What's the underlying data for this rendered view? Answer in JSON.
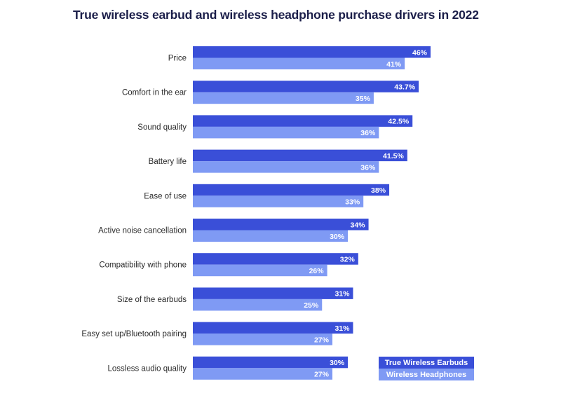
{
  "colors": {
    "earbuds": "#3a4fd8",
    "headphones": "#7f9af4",
    "title": "#1c1f4a",
    "label": "#2a2a2a"
  },
  "chart_data": {
    "type": "bar",
    "orientation": "horizontal",
    "title": "True wireless earbud and wireless headphone purchase drivers in 2022",
    "xlabel": "",
    "ylabel": "",
    "xlim": [
      0,
      48
    ],
    "grid": false,
    "legend_position": "bottom-right",
    "categories": [
      "Price",
      "Comfort in the ear",
      "Sound quality",
      "Battery life",
      "Ease of use",
      "Active noise cancellation",
      "Compatibility with phone",
      "Size of the earbuds",
      "Easy set up/Bluetooth pairing",
      "Lossless audio quality"
    ],
    "series": [
      {
        "name": "True Wireless Earbuds",
        "values": [
          46,
          43.7,
          42.5,
          41.5,
          38,
          34,
          32,
          31,
          31,
          30
        ],
        "labels": [
          "46%",
          "43.7%",
          "42.5%",
          "41.5%",
          "38%",
          "34%",
          "32%",
          "31%",
          "31%",
          "30%"
        ]
      },
      {
        "name": "Wireless Headphones",
        "values": [
          41,
          35,
          36,
          36,
          33,
          30,
          26,
          25,
          27,
          27
        ],
        "labels": [
          "41%",
          "35%",
          "36%",
          "36%",
          "33%",
          "30%",
          "26%",
          "25%",
          "27%",
          "27%"
        ]
      }
    ]
  }
}
